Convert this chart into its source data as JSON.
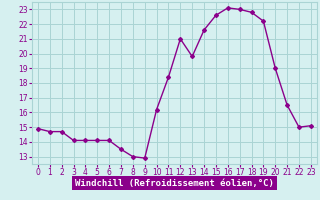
{
  "x": [
    0,
    1,
    2,
    3,
    4,
    5,
    6,
    7,
    8,
    9,
    10,
    11,
    12,
    13,
    14,
    15,
    16,
    17,
    18,
    19,
    20,
    21,
    22,
    23
  ],
  "y": [
    14.9,
    14.7,
    14.7,
    14.1,
    14.1,
    14.1,
    14.1,
    13.5,
    13.0,
    12.9,
    16.2,
    18.4,
    21.0,
    19.8,
    21.6,
    22.6,
    23.1,
    23.0,
    22.8,
    22.2,
    19.0,
    16.5,
    15.0,
    15.1
  ],
  "xlim": [
    -0.5,
    23.5
  ],
  "ylim": [
    12.5,
    23.5
  ],
  "yticks": [
    13,
    14,
    15,
    16,
    17,
    18,
    19,
    20,
    21,
    22,
    23
  ],
  "xticks": [
    0,
    1,
    2,
    3,
    4,
    5,
    6,
    7,
    8,
    9,
    10,
    11,
    12,
    13,
    14,
    15,
    16,
    17,
    18,
    19,
    20,
    21,
    22,
    23
  ],
  "xlabel": "Windchill (Refroidissement éolien,°C)",
  "line_color": "#8b008b",
  "marker": "D",
  "marker_size": 2,
  "bg_color": "#d6f0f0",
  "grid_color": "#aad4d4",
  "xlabel_fontsize": 6.5,
  "tick_fontsize": 5.5,
  "tick_color": "#8b008b",
  "xlabel_text_color": "#ffffff"
}
